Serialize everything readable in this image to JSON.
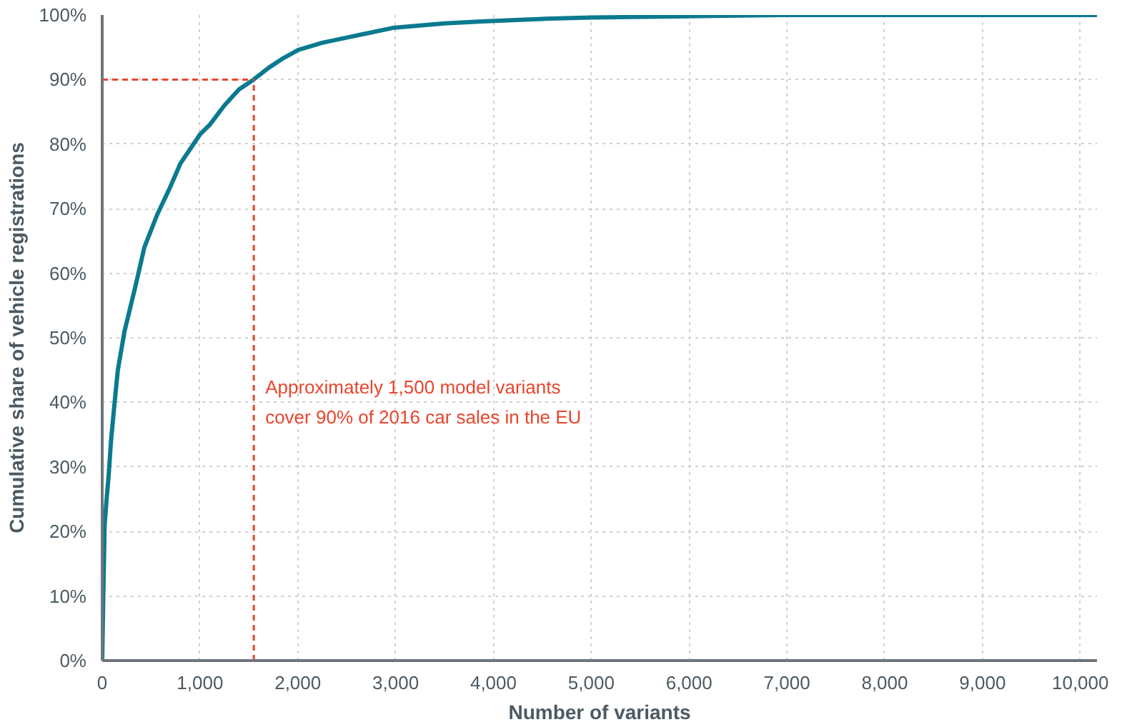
{
  "chart_data": {
    "type": "line",
    "xlabel": "Number of variants",
    "ylabel": "Cumulative share of vehicle registrations",
    "series": [
      {
        "color": "#0b7a8f",
        "x": [
          0,
          10,
          25,
          45,
          66,
          90,
          127,
          160,
          228,
          340,
          431,
          560,
          685,
          800,
          1000,
          1100,
          1250,
          1400,
          1548,
          1700,
          1850,
          2005,
          2250,
          2500,
          2970,
          3500,
          3883,
          4500,
          5000,
          6000,
          7000,
          8000,
          9000,
          10000,
          10170
        ],
        "values": [
          0,
          9,
          21,
          25,
          28.7,
          34,
          40,
          45,
          51,
          58,
          64,
          69,
          73,
          77,
          81.5,
          83,
          86,
          88.5,
          90,
          91.8,
          93.3,
          94.6,
          95.7,
          96.5,
          98,
          98.7,
          99,
          99.4,
          99.6,
          99.8,
          100,
          100,
          100,
          100,
          100
        ]
      }
    ],
    "xlim": [
      0,
      10170
    ],
    "ylim": [
      0,
      100
    ],
    "xticks": [
      0,
      {
        "value": 1000,
        "label": "1,000"
      },
      {
        "value": 2000,
        "label": "2,000"
      },
      {
        "value": 3000,
        "label": "3,000"
      },
      {
        "value": 4000,
        "label": "4,000"
      },
      {
        "value": 5000,
        "label": "5,000"
      },
      {
        "value": 6000,
        "label": "6,000"
      },
      {
        "value": 7000,
        "label": "7,000"
      },
      {
        "value": 8000,
        "label": "8,000"
      },
      {
        "value": 9000,
        "label": "9,000"
      },
      {
        "value": 10000,
        "label": "10,000"
      }
    ],
    "yticks": [
      {
        "value": 0,
        "label": "0%"
      },
      {
        "value": 10,
        "label": "10%"
      },
      {
        "value": 20,
        "label": "20%"
      },
      {
        "value": 30,
        "label": "30%"
      },
      {
        "value": 40,
        "label": "40%"
      },
      {
        "value": 50,
        "label": "50%"
      },
      {
        "value": 60,
        "label": "60%"
      },
      {
        "value": 70,
        "label": "70%"
      },
      {
        "value": 80,
        "label": "80%"
      },
      {
        "value": 90,
        "label": "90%"
      },
      {
        "value": 100,
        "label": "100%"
      }
    ],
    "ref_lines": [
      {
        "axis": "x",
        "value": 1550,
        "color": "#e8452c",
        "line_style": "dashed"
      },
      {
        "axis": "y",
        "value": 90,
        "color": "#e8452c",
        "line_style": "dashed"
      }
    ],
    "annotations": [
      {
        "text": "Approximately 1,500 model variants\ncover 90% of 2016 car sales in the EU",
        "x": 1550,
        "y": 44
      }
    ],
    "grid": true,
    "marker": "none",
    "line_style": "solid"
  }
}
